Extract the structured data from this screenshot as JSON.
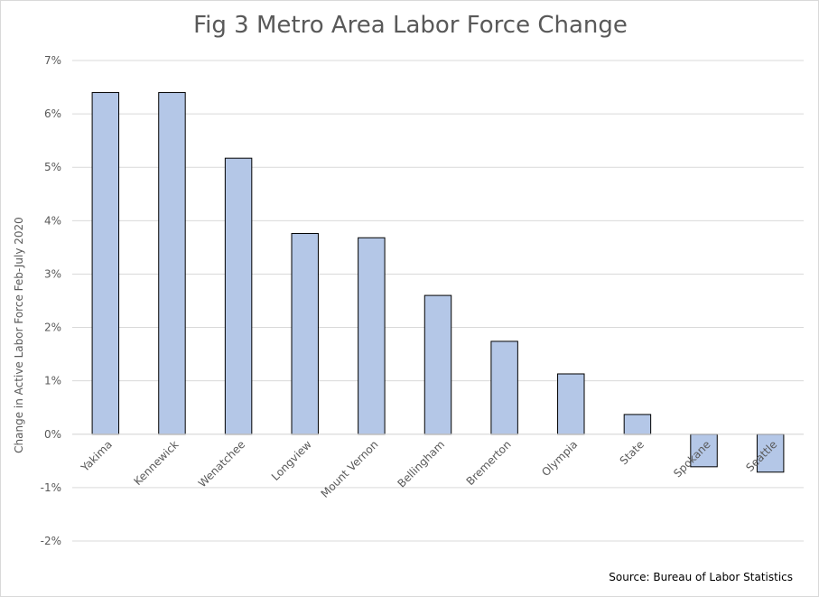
{
  "chart_data": {
    "type": "bar",
    "title": "Fig 3 Metro Area Labor Force Change",
    "xlabel": "",
    "ylabel": "Change in Active Labor Force Feb-July 2020",
    "source": "Source: Bureau of Labor Statistics",
    "categories": [
      "Yakima",
      "Kennewick",
      "Wenatchee",
      "Longview",
      "Mount Vernon",
      "Bellingham",
      "Bremerton",
      "Olympia",
      "State",
      "Spokane",
      "Seattle"
    ],
    "values": [
      6.4,
      6.4,
      5.17,
      3.76,
      3.68,
      2.6,
      1.74,
      1.13,
      0.37,
      -0.61,
      -0.71
    ],
    "ylim": [
      -2,
      7
    ],
    "yticks": [
      "-2%",
      "-1%",
      "0%",
      "1%",
      "2%",
      "3%",
      "4%",
      "5%",
      "6%",
      "7%"
    ],
    "grid": true,
    "legend": "none",
    "bar_color": "#b4c7e7",
    "bar_outline": "#000000",
    "grid_color": "#d9d9d9"
  }
}
